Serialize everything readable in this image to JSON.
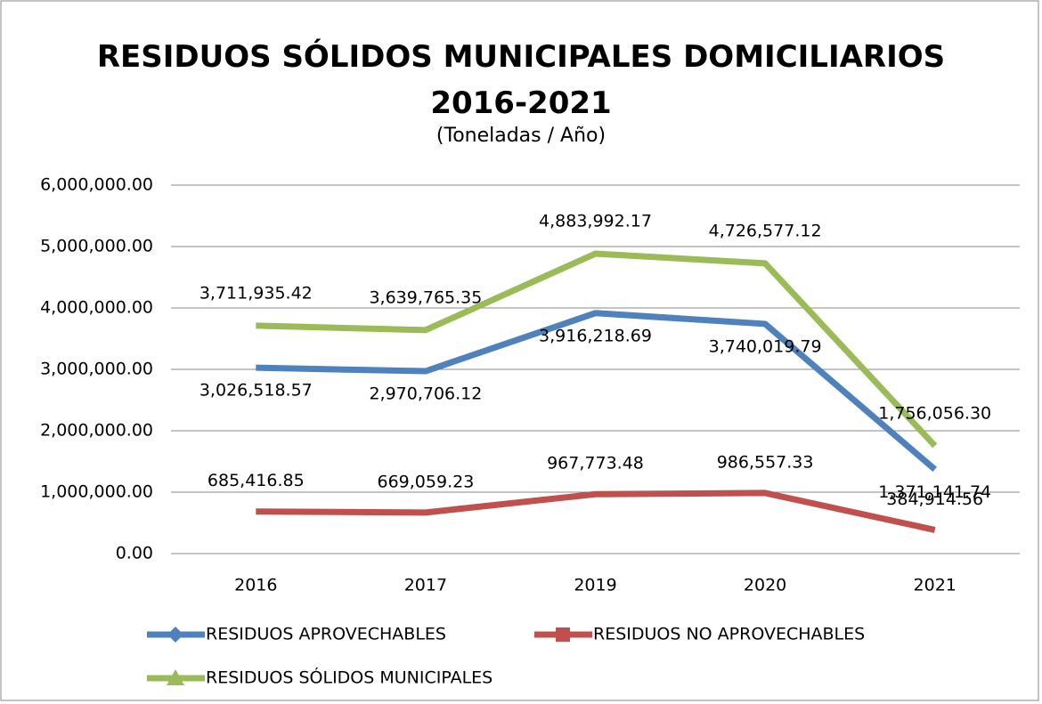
{
  "chart_data": {
    "type": "line",
    "title": "RESIDUOS SÓLIDOS MUNICIPALES DOMICILIARIOS 2016-2021",
    "subtitle": "(Toneladas / Año)",
    "categories": [
      "2016",
      "2017",
      "2019",
      "2020",
      "2021"
    ],
    "series": [
      {
        "name": "RESIDUOS APROVECHABLES",
        "color": "#4f81bd",
        "marker": "diamond",
        "values": [
          3026518.57,
          2970706.12,
          3916218.69,
          3740019.79,
          1371141.74
        ],
        "value_labels": [
          "3,026,518.57",
          "2,970,706.12",
          "3,916,218.69",
          "3,740,019.79",
          "1,371,141.74"
        ]
      },
      {
        "name": "RESIDUOS NO APROVECHABLES",
        "color": "#c0504d",
        "marker": "square",
        "values": [
          685416.85,
          669059.23,
          967773.48,
          986557.33,
          384914.56
        ],
        "value_labels": [
          "685,416.85",
          "669,059.23",
          "967,773.48",
          "986,557.33",
          "384,914.56"
        ]
      },
      {
        "name": "RESIDUOS SÓLIDOS MUNICIPALES",
        "color": "#9bbb59",
        "marker": "triangle",
        "values": [
          3711935.42,
          3639765.35,
          4883992.17,
          4726577.12,
          1756056.3
        ],
        "value_labels": [
          "3,711,935.42",
          "3,639,765.35",
          "4,883,992.17",
          "4,726,577.12",
          "1,756,056.30"
        ]
      }
    ],
    "ylim": [
      0,
      6000000
    ],
    "yticks": [
      {
        "value": 0,
        "label": "0.00"
      },
      {
        "value": 1000000,
        "label": "1,000,000.00"
      },
      {
        "value": 2000000,
        "label": "2,000,000.00"
      },
      {
        "value": 3000000,
        "label": "3,000,000.00"
      },
      {
        "value": 4000000,
        "label": "4,000,000.00"
      },
      {
        "value": 5000000,
        "label": "5,000,000.00"
      },
      {
        "value": 6000000,
        "label": "6,000,000.00"
      }
    ],
    "grid": true,
    "legend": "bottom"
  }
}
